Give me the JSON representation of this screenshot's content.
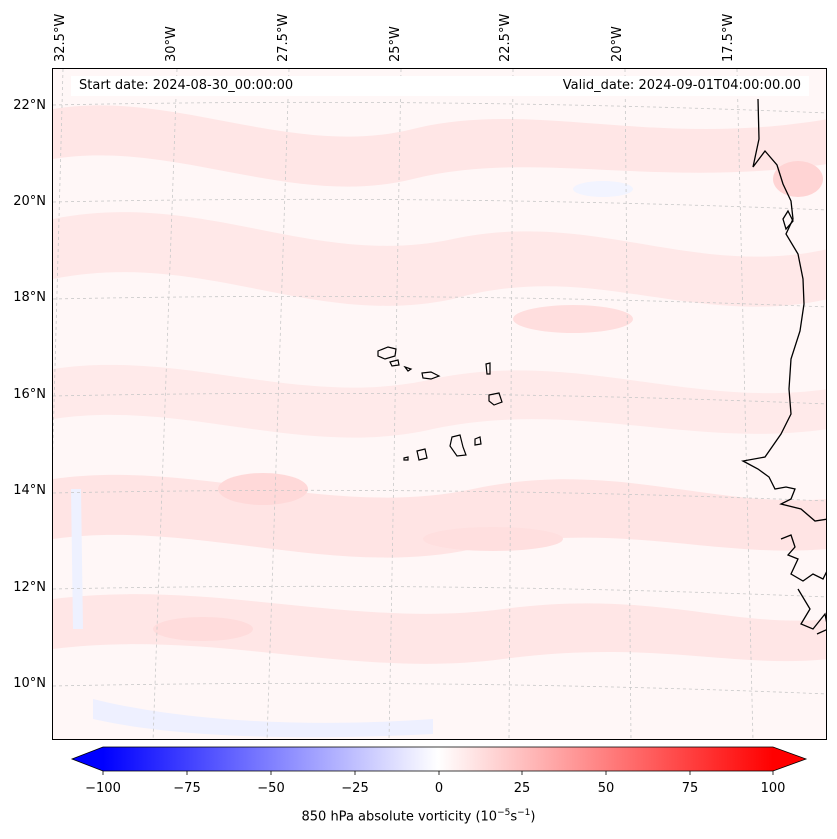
{
  "header": {
    "start_date": "Start date: 2024-08-30_00:00:00",
    "valid_date": "Valid_date: 2024-09-01T04:00:00.00"
  },
  "map": {
    "lon_labels": [
      "32.5°W",
      "30°W",
      "27.5°W",
      "25°W",
      "22.5°W",
      "20°W",
      "17.5°W"
    ],
    "lat_labels": [
      "22°N",
      "20°N",
      "18°N",
      "16°N",
      "14°N",
      "12°N",
      "10°N"
    ],
    "field_colors": {
      "background": "#fff7f7",
      "weak_positive": "#ffe6e6",
      "moderate_positive": "#ffd6d6",
      "weak_negative": "#f2f4ff",
      "coastline": "#000000"
    }
  },
  "colorbar": {
    "ticks": [
      "−100",
      "−75",
      "−50",
      "−25",
      "0",
      "25",
      "50",
      "75",
      "100"
    ],
    "title": "850 hPa absolute vorticity (10",
    "title_exp1": "−5",
    "title_mid": "s",
    "title_exp2": "−1",
    "title_end": ")",
    "colormap": "bwr",
    "range": [
      -100,
      100
    ],
    "extend": "both"
  }
}
